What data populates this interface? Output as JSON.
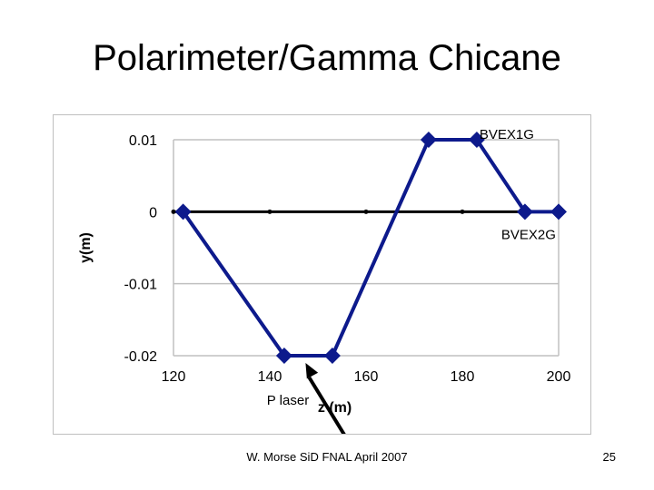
{
  "slide": {
    "title": "Polarimeter/Gamma Chicane",
    "footer": "W. Morse SiD FNAL April 2007",
    "page_number": "25"
  },
  "colors": {
    "series": "#0d1a8c",
    "axis": "#000000",
    "grid": "#c0c0c0"
  },
  "chart_data": {
    "type": "line",
    "title": "",
    "xlabel": "z (m)",
    "ylabel": "y(m)",
    "xlim": [
      120,
      200
    ],
    "ylim": [
      -0.02,
      0.01
    ],
    "xticks": [
      120,
      140,
      160,
      180,
      200
    ],
    "yticks": [
      0.01,
      0,
      -0.01,
      -0.02
    ],
    "xtick_labels": [
      "120",
      "140",
      "160",
      "180",
      "200"
    ],
    "ytick_labels": [
      "0.01",
      "0",
      "-0.01",
      "-0.02"
    ],
    "grid": "horizontal",
    "series": [
      {
        "x": [
          122,
          143,
          153,
          173,
          183,
          193,
          200
        ],
        "y": [
          0,
          -0.02,
          -0.02,
          0.01,
          0.01,
          0,
          0
        ],
        "marker": "diamond"
      }
    ],
    "zero_line_points": [
      120,
      140,
      160,
      180
    ],
    "annotations": [
      {
        "text": "BVEX1G",
        "x": 183,
        "y": 0.01
      },
      {
        "text": "BVEX2G",
        "x": 193,
        "y": 0
      },
      {
        "text": "P laser",
        "x": 148,
        "y": -0.02,
        "arrow": true
      }
    ]
  }
}
